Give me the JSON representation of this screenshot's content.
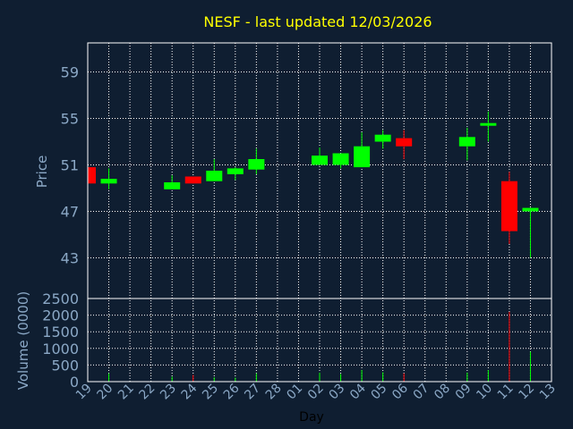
{
  "chart_data": {
    "type": "candlestick",
    "title": "NESF - last updated 12/03/2026",
    "xlabel": "Day",
    "price_panel": {
      "ylabel": "Price",
      "ylim": [
        39.5,
        61.5
      ],
      "yticks": [
        43,
        47,
        51,
        55,
        59
      ]
    },
    "volume_panel": {
      "ylabel": "Volume (0000)",
      "ylim": [
        0,
        2500
      ],
      "yticks": [
        0,
        500,
        1000,
        1500,
        2000,
        2500
      ]
    },
    "x_tick_labels": [
      "19",
      "20",
      "21",
      "22",
      "23",
      "24",
      "25",
      "26",
      "27",
      "28",
      "01",
      "02",
      "03",
      "04",
      "05",
      "06",
      "07",
      "08",
      "09",
      "10",
      "11",
      "12",
      "13"
    ],
    "grid": true,
    "colors": {
      "up": "#00ff00",
      "down": "#ff0000",
      "background": "#0f1e31",
      "title": "#ffff00",
      "axis_text": "#8ba8c6",
      "grid": "#ffffff"
    },
    "candles": [
      {
        "day": "19",
        "open": 50.8,
        "high": 50.8,
        "low": 49.4,
        "close": 49.4,
        "volume": 0
      },
      {
        "day": "20",
        "open": 49.4,
        "high": 50.7,
        "low": 48.9,
        "close": 49.8,
        "volume": 250
      },
      {
        "day": "23",
        "open": 48.9,
        "high": 50.1,
        "low": 48.9,
        "close": 49.5,
        "volume": 150
      },
      {
        "day": "24",
        "open": 50.0,
        "high": 50.0,
        "low": 49.4,
        "close": 49.4,
        "volume": 200
      },
      {
        "day": "25",
        "open": 49.6,
        "high": 51.5,
        "low": 49.6,
        "close": 50.5,
        "volume": 130
      },
      {
        "day": "26",
        "open": 50.2,
        "high": 50.8,
        "low": 49.7,
        "close": 50.7,
        "volume": 120
      },
      {
        "day": "27",
        "open": 50.6,
        "high": 52.4,
        "low": 50.2,
        "close": 51.5,
        "volume": 250
      },
      {
        "day": "02",
        "open": 51.0,
        "high": 52.5,
        "low": 51.0,
        "close": 51.8,
        "volume": 270
      },
      {
        "day": "03",
        "open": 51.0,
        "high": 52.0,
        "low": 50.7,
        "close": 52.0,
        "volume": 230
      },
      {
        "day": "04",
        "open": 50.8,
        "high": 53.8,
        "low": 50.8,
        "close": 52.6,
        "volume": 350
      },
      {
        "day": "05",
        "open": 53.0,
        "high": 54.0,
        "low": 52.4,
        "close": 53.6,
        "volume": 280
      },
      {
        "day": "06",
        "open": 53.3,
        "high": 54.0,
        "low": 51.5,
        "close": 52.6,
        "volume": 250
      },
      {
        "day": "09",
        "open": 52.6,
        "high": 54.2,
        "low": 51.4,
        "close": 53.4,
        "volume": 270
      },
      {
        "day": "10",
        "open": 54.4,
        "high": 55.6,
        "low": 53.0,
        "close": 54.6,
        "volume": 350
      },
      {
        "day": "11",
        "open": 49.6,
        "high": 50.4,
        "low": 44.2,
        "close": 45.3,
        "volume": 2100
      },
      {
        "day": "12",
        "open": 47.0,
        "high": 47.3,
        "low": 43.0,
        "close": 47.3,
        "volume": 900
      }
    ]
  }
}
